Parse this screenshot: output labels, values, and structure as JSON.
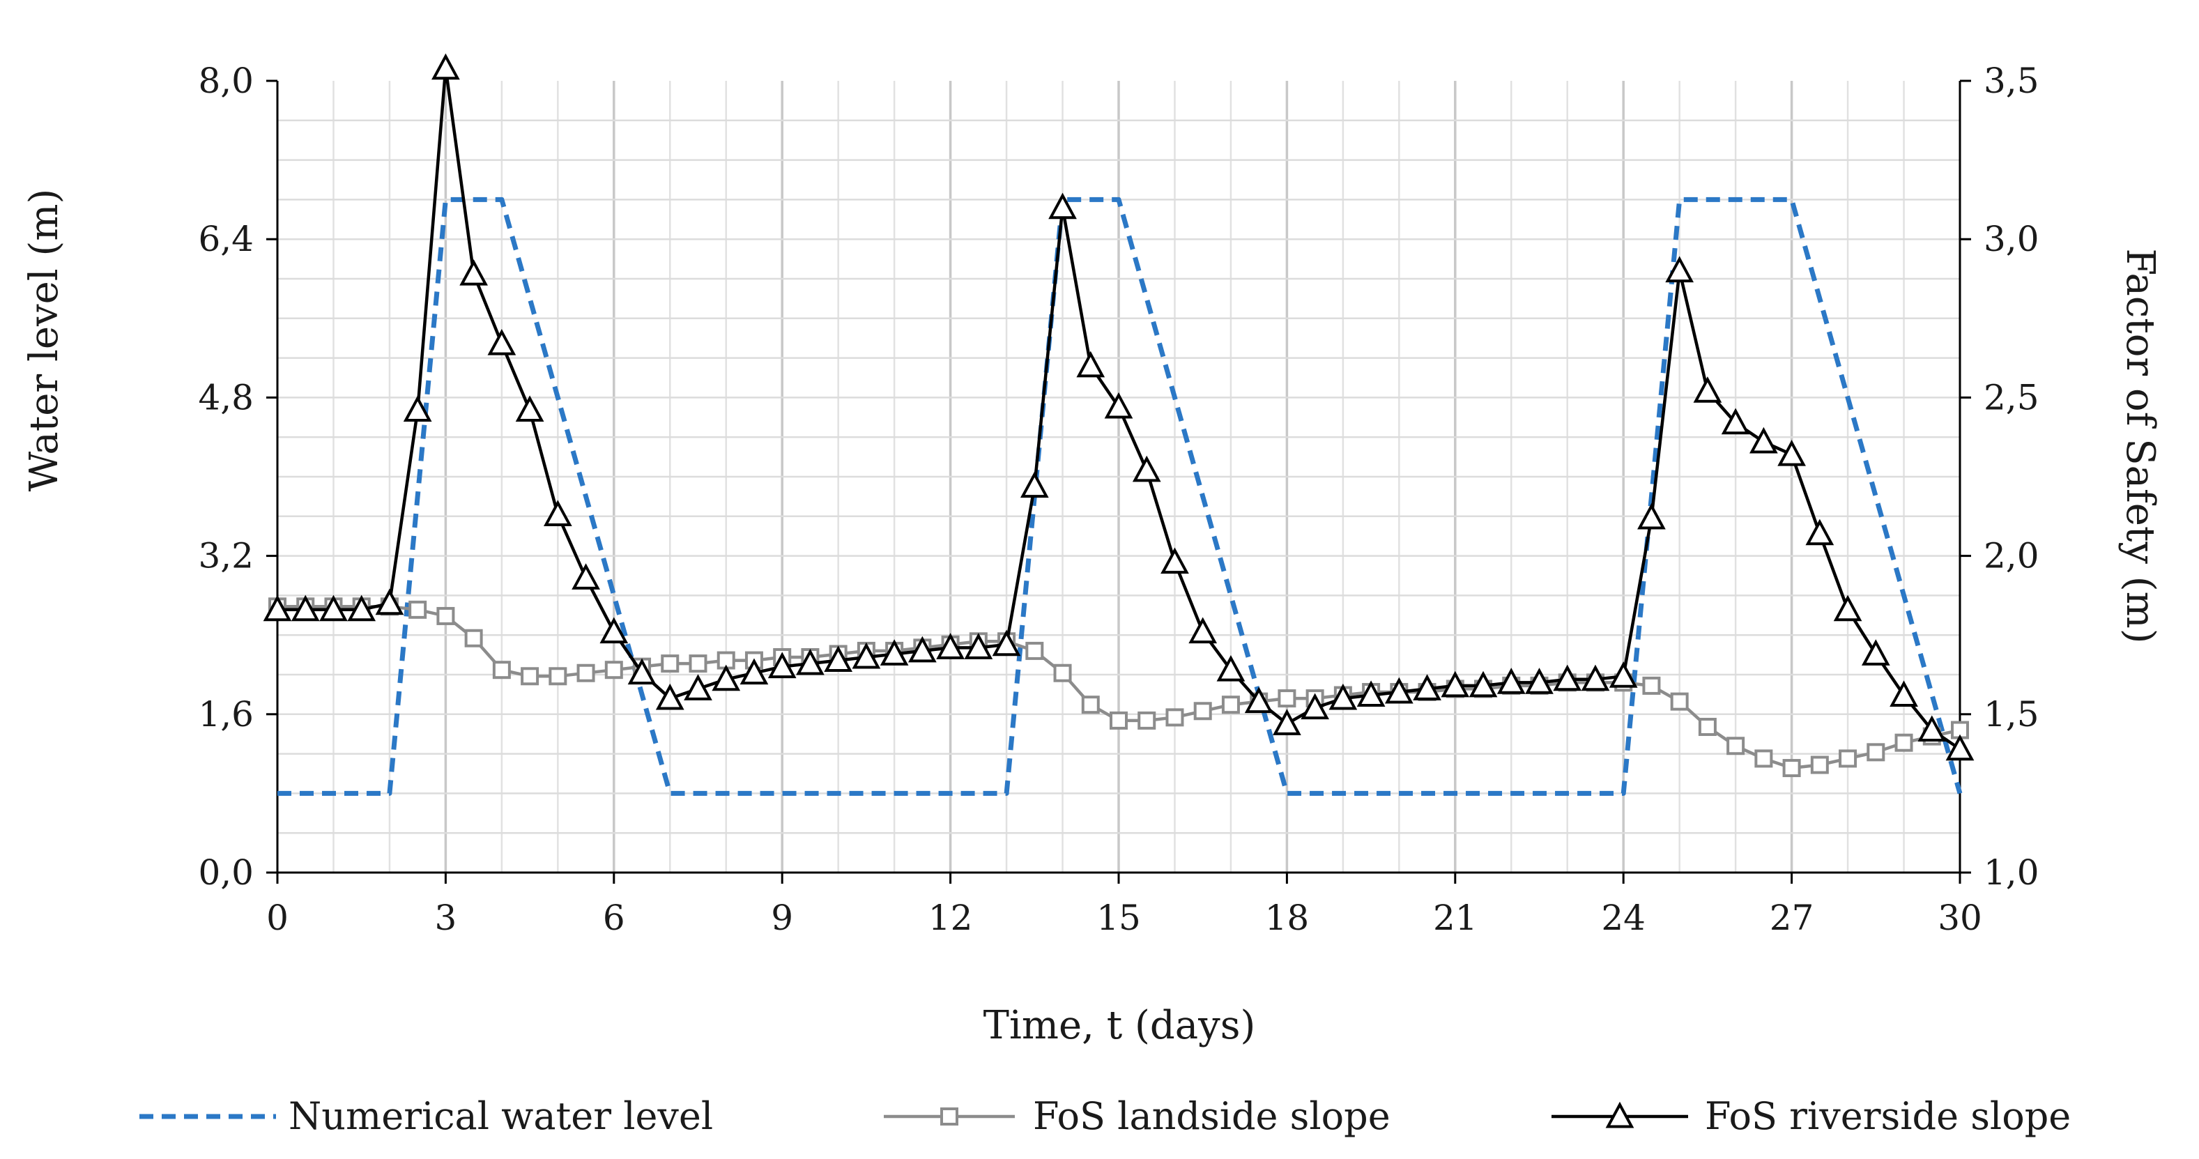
{
  "chart_data": {
    "type": "line",
    "x_axis": {
      "label": "Time, t (days)",
      "range": [
        0,
        30
      ],
      "major_ticks": [
        0,
        3,
        6,
        9,
        12,
        15,
        18,
        21,
        24,
        27,
        30
      ],
      "tick_labels": [
        "0",
        "3",
        "6",
        "9",
        "12",
        "15",
        "18",
        "21",
        "24",
        "27",
        "30"
      ],
      "minor_step": 1
    },
    "y_left": {
      "label": "Water level (m)",
      "range": [
        0,
        8
      ],
      "ticks": [
        0,
        1.6,
        3.2,
        4.8,
        6.4,
        8.0
      ],
      "tick_labels": [
        "0,0",
        "1,6",
        "3,2",
        "4,8",
        "6,4",
        "8,0"
      ],
      "minor_step": 0.4
    },
    "y_right": {
      "label": "Factor of Safety (m)",
      "range": [
        1.0,
        3.5
      ],
      "ticks": [
        1.0,
        1.5,
        2.0,
        2.5,
        3.0,
        3.5
      ],
      "tick_labels": [
        "1,0",
        "1,5",
        "2,0",
        "2,5",
        "3,0",
        "3,5"
      ]
    },
    "grid": true,
    "legend_position": "bottom",
    "series": [
      {
        "name": "Numerical water level",
        "axis": "left",
        "style": "dashed",
        "color": "#2b78c6",
        "marker": "none",
        "x": [
          0,
          2,
          3,
          4,
          7,
          13,
          14,
          15,
          18,
          24,
          25,
          27,
          30
        ],
        "y": [
          0.8,
          0.8,
          6.8,
          6.8,
          0.8,
          0.8,
          6.8,
          6.8,
          0.8,
          0.8,
          6.8,
          6.8,
          0.8
        ]
      },
      {
        "name": "FoS landside slope",
        "axis": "right",
        "style": "solid",
        "color": "#8c8c8c",
        "marker": "square",
        "x": [
          0,
          0.5,
          1,
          1.5,
          2,
          2.5,
          3,
          3.5,
          4,
          4.5,
          5,
          5.5,
          6,
          6.5,
          7,
          7.5,
          8,
          8.5,
          9,
          9.5,
          10,
          10.5,
          11,
          11.5,
          12,
          12.5,
          13,
          13.5,
          14,
          14.5,
          15,
          15.5,
          16,
          16.5,
          17,
          17.5,
          18,
          18.5,
          19,
          19.5,
          20,
          20.5,
          21,
          21.5,
          22,
          22.5,
          23,
          23.5,
          24,
          24.5,
          25,
          25.5,
          26,
          26.5,
          27,
          27.5,
          28,
          28.5,
          29,
          29.5,
          30
        ],
        "y": [
          1.84,
          1.84,
          1.84,
          1.84,
          1.84,
          1.83,
          1.81,
          1.74,
          1.64,
          1.62,
          1.62,
          1.63,
          1.64,
          1.65,
          1.66,
          1.66,
          1.67,
          1.67,
          1.68,
          1.68,
          1.69,
          1.7,
          1.7,
          1.71,
          1.72,
          1.73,
          1.73,
          1.7,
          1.63,
          1.53,
          1.48,
          1.48,
          1.49,
          1.51,
          1.53,
          1.54,
          1.55,
          1.55,
          1.56,
          1.57,
          1.57,
          1.57,
          1.58,
          1.58,
          1.59,
          1.59,
          1.6,
          1.6,
          1.6,
          1.59,
          1.54,
          1.46,
          1.4,
          1.36,
          1.33,
          1.34,
          1.36,
          1.38,
          1.41,
          1.43,
          1.45
        ]
      },
      {
        "name": "FoS riverside slope",
        "axis": "right",
        "style": "solid",
        "color": "#000000",
        "marker": "triangle",
        "x": [
          0,
          0.5,
          1,
          1.5,
          2,
          2.5,
          3,
          3.5,
          4,
          4.5,
          5,
          5.5,
          6,
          6.5,
          7,
          7.5,
          8,
          8.5,
          9,
          9.5,
          10,
          10.5,
          11,
          11.5,
          12,
          12.5,
          13,
          13.5,
          14,
          14.5,
          15,
          15.5,
          16,
          16.5,
          17,
          17.5,
          18,
          18.5,
          19,
          19.5,
          20,
          20.5,
          21,
          21.5,
          22,
          22.5,
          23,
          23.5,
          24,
          24.5,
          25,
          25.5,
          26,
          26.5,
          27,
          27.5,
          28,
          28.5,
          29,
          29.5,
          30
        ],
        "y": [
          1.83,
          1.83,
          1.83,
          1.83,
          1.85,
          2.46,
          3.54,
          2.89,
          2.67,
          2.46,
          2.13,
          1.93,
          1.76,
          1.63,
          1.55,
          1.58,
          1.61,
          1.63,
          1.65,
          1.66,
          1.67,
          1.68,
          1.69,
          1.7,
          1.71,
          1.71,
          1.72,
          2.22,
          3.1,
          2.6,
          2.47,
          2.27,
          1.98,
          1.76,
          1.64,
          1.54,
          1.47,
          1.52,
          1.55,
          1.56,
          1.57,
          1.58,
          1.59,
          1.59,
          1.6,
          1.6,
          1.61,
          1.61,
          1.62,
          2.12,
          2.9,
          2.52,
          2.42,
          2.36,
          2.32,
          2.07,
          1.83,
          1.69,
          1.56,
          1.45,
          1.39
        ]
      }
    ]
  }
}
